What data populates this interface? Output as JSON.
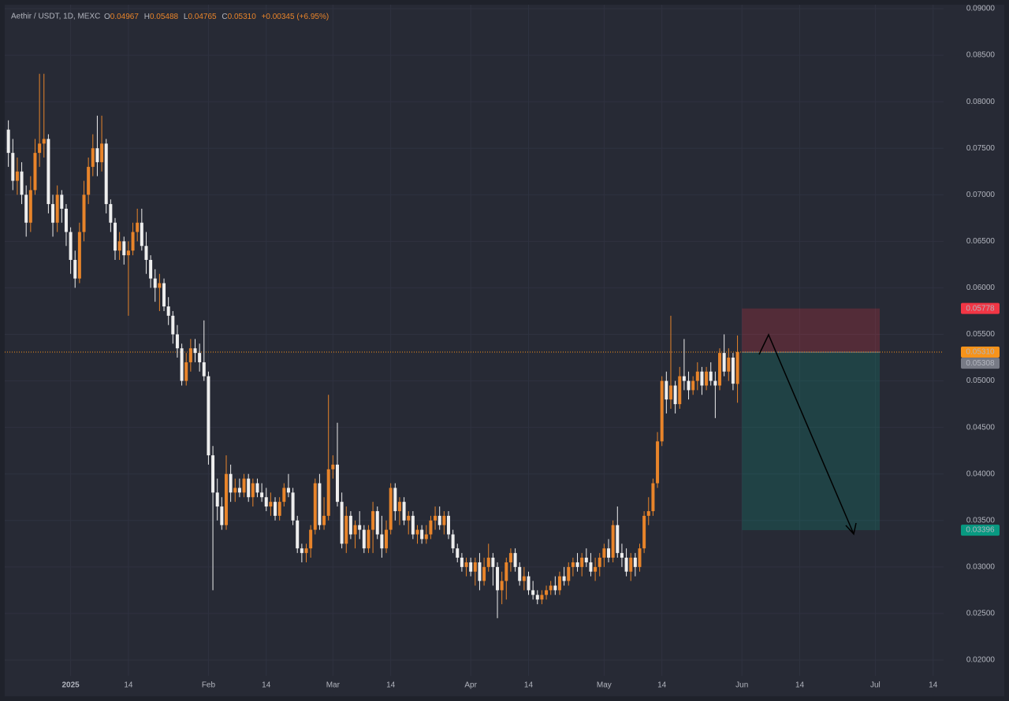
{
  "chart_data": {
    "type": "candlestick",
    "header": {
      "symbol": "Aethir / USDT, 1D, MEXC",
      "o": "O",
      "open": "0.04967",
      "h": "H",
      "high": "0.05488",
      "l": "L",
      "low": "0.04765",
      "c": "C",
      "close": "0.05310",
      "change": "+0.00345 (+6.95%)"
    },
    "up_color": "#e8842a",
    "down_color": "#eeeeee",
    "xlim": [
      "2024-12-17",
      "2025-07-16"
    ],
    "xticks": [
      {
        "value": "2025-01-01",
        "label": "2025"
      },
      {
        "value": "2025-01-14",
        "label": "14"
      },
      {
        "value": "2025-02-01",
        "label": "Feb"
      },
      {
        "value": "2025-02-14",
        "label": "14"
      },
      {
        "value": "2025-03-01",
        "label": "Mar"
      },
      {
        "value": "2025-03-14",
        "label": "14"
      },
      {
        "value": "2025-04-01",
        "label": "Apr"
      },
      {
        "value": "2025-04-14",
        "label": "14"
      },
      {
        "value": "2025-05-01",
        "label": "May"
      },
      {
        "value": "2025-05-14",
        "label": "14"
      },
      {
        "value": "2025-06-01",
        "label": "Jun"
      },
      {
        "value": "2025-06-14",
        "label": "14"
      },
      {
        "value": "2025-07-01",
        "label": "Jul"
      },
      {
        "value": "2025-07-14",
        "label": "14"
      }
    ],
    "ylim": [
      0.02,
      0.09
    ],
    "yticks": [
      {
        "value": 0.02,
        "label": "0.02000"
      },
      {
        "value": 0.025,
        "label": "0.02500"
      },
      {
        "value": 0.03,
        "label": "0.03000"
      },
      {
        "value": 0.035,
        "label": "0.03500"
      },
      {
        "value": 0.04,
        "label": "0.04000"
      },
      {
        "value": 0.045,
        "label": "0.04500"
      },
      {
        "value": 0.05,
        "label": "0.05000"
      },
      {
        "value": 0.055,
        "label": "0.05500"
      },
      {
        "value": 0.06,
        "label": "0.06000"
      },
      {
        "value": 0.065,
        "label": "0.06500"
      },
      {
        "value": 0.07,
        "label": "0.07000"
      },
      {
        "value": 0.075,
        "label": "0.07500"
      },
      {
        "value": 0.08,
        "label": "0.08000"
      },
      {
        "value": 0.085,
        "label": "0.08500"
      },
      {
        "value": 0.09,
        "label": "0.09000"
      }
    ],
    "grid": true,
    "last_price": {
      "value": 0.0531,
      "label": "0.05310",
      "color": "#f7931a"
    },
    "position": {
      "start": "2025-06-01",
      "end": "2025-07-02",
      "stop": 0.05778,
      "entry": 0.05308,
      "target": 0.03396,
      "stop_color": "#f23645",
      "entry_color": "#787b86",
      "target_color": "#089981"
    },
    "x": [
      "2024-12-18",
      "2024-12-19",
      "2024-12-20",
      "2024-12-21",
      "2024-12-22",
      "2024-12-23",
      "2024-12-24",
      "2024-12-25",
      "2024-12-26",
      "2024-12-27",
      "2024-12-28",
      "2024-12-29",
      "2024-12-30",
      "2024-12-31",
      "2025-01-01",
      "2025-01-02",
      "2025-01-03",
      "2025-01-04",
      "2025-01-05",
      "2025-01-06",
      "2025-01-07",
      "2025-01-08",
      "2025-01-09",
      "2025-01-10",
      "2025-01-11",
      "2025-01-12",
      "2025-01-13",
      "2025-01-14",
      "2025-01-15",
      "2025-01-16",
      "2025-01-17",
      "2025-01-18",
      "2025-01-19",
      "2025-01-20",
      "2025-01-21",
      "2025-01-22",
      "2025-01-23",
      "2025-01-24",
      "2025-01-25",
      "2025-01-26",
      "2025-01-27",
      "2025-01-28",
      "2025-01-29",
      "2025-01-30",
      "2025-01-31",
      "2025-02-01",
      "2025-02-02",
      "2025-02-03",
      "2025-02-04",
      "2025-02-05",
      "2025-02-06",
      "2025-02-07",
      "2025-02-08",
      "2025-02-09",
      "2025-02-10",
      "2025-02-11",
      "2025-02-12",
      "2025-02-13",
      "2025-02-14",
      "2025-02-15",
      "2025-02-16",
      "2025-02-17",
      "2025-02-18",
      "2025-02-19",
      "2025-02-20",
      "2025-02-21",
      "2025-02-22",
      "2025-02-23",
      "2025-02-24",
      "2025-02-25",
      "2025-02-26",
      "2025-02-27",
      "2025-02-28",
      "2025-03-01",
      "2025-03-02",
      "2025-03-03",
      "2025-03-04",
      "2025-03-05",
      "2025-03-06",
      "2025-03-07",
      "2025-03-08",
      "2025-03-09",
      "2025-03-10",
      "2025-03-11",
      "2025-03-12",
      "2025-03-13",
      "2025-03-14",
      "2025-03-15",
      "2025-03-16",
      "2025-03-17",
      "2025-03-18",
      "2025-03-19",
      "2025-03-20",
      "2025-03-21",
      "2025-03-22",
      "2025-03-23",
      "2025-03-24",
      "2025-03-25",
      "2025-03-26",
      "2025-03-27",
      "2025-03-28",
      "2025-03-29",
      "2025-03-30",
      "2025-03-31",
      "2025-04-01",
      "2025-04-02",
      "2025-04-03",
      "2025-04-04",
      "2025-04-05",
      "2025-04-06",
      "2025-04-07",
      "2025-04-08",
      "2025-04-09",
      "2025-04-10",
      "2025-04-11",
      "2025-04-12",
      "2025-04-13",
      "2025-04-14",
      "2025-04-15",
      "2025-04-16",
      "2025-04-17",
      "2025-04-18",
      "2025-04-19",
      "2025-04-20",
      "2025-04-21",
      "2025-04-22",
      "2025-04-23",
      "2025-04-24",
      "2025-04-25",
      "2025-04-26",
      "2025-04-27",
      "2025-04-28",
      "2025-04-29",
      "2025-04-30",
      "2025-05-01",
      "2025-05-02",
      "2025-05-03",
      "2025-05-04",
      "2025-05-05",
      "2025-05-06",
      "2025-05-07",
      "2025-05-08",
      "2025-05-09",
      "2025-05-10",
      "2025-05-11",
      "2025-05-12",
      "2025-05-13",
      "2025-05-14",
      "2025-05-15",
      "2025-05-16",
      "2025-05-17",
      "2025-05-18",
      "2025-05-19",
      "2025-05-20",
      "2025-05-21",
      "2025-05-22",
      "2025-05-23",
      "2025-05-24",
      "2025-05-25",
      "2025-05-26",
      "2025-05-27",
      "2025-05-28",
      "2025-05-29",
      "2025-05-30",
      "2025-05-31"
    ],
    "candles": [
      [
        0.077,
        0.078,
        0.073,
        0.0745
      ],
      [
        0.0745,
        0.076,
        0.0705,
        0.0715
      ],
      [
        0.0715,
        0.074,
        0.07,
        0.0725
      ],
      [
        0.0725,
        0.0735,
        0.069,
        0.07
      ],
      [
        0.07,
        0.071,
        0.0655,
        0.067
      ],
      [
        0.067,
        0.072,
        0.066,
        0.0705
      ],
      [
        0.0705,
        0.076,
        0.07,
        0.0745
      ],
      [
        0.0745,
        0.083,
        0.073,
        0.0755
      ],
      [
        0.0755,
        0.083,
        0.074,
        0.076
      ],
      [
        0.076,
        0.0765,
        0.068,
        0.069
      ],
      [
        0.069,
        0.07,
        0.0655,
        0.067
      ],
      [
        0.067,
        0.071,
        0.066,
        0.07
      ],
      [
        0.07,
        0.0705,
        0.067,
        0.0685
      ],
      [
        0.0685,
        0.069,
        0.0645,
        0.066
      ],
      [
        0.066,
        0.0665,
        0.0615,
        0.063
      ],
      [
        0.063,
        0.064,
        0.06,
        0.061
      ],
      [
        0.061,
        0.067,
        0.0605,
        0.066
      ],
      [
        0.066,
        0.0715,
        0.065,
        0.07
      ],
      [
        0.07,
        0.074,
        0.069,
        0.073
      ],
      [
        0.073,
        0.0765,
        0.072,
        0.075
      ],
      [
        0.075,
        0.0785,
        0.072,
        0.0735
      ],
      [
        0.0735,
        0.0785,
        0.0725,
        0.0755
      ],
      [
        0.0755,
        0.076,
        0.068,
        0.069
      ],
      [
        0.069,
        0.0695,
        0.066,
        0.067
      ],
      [
        0.067,
        0.0675,
        0.063,
        0.064
      ],
      [
        0.064,
        0.066,
        0.063,
        0.065
      ],
      [
        0.065,
        0.0655,
        0.0625,
        0.0635
      ],
      [
        0.0635,
        0.065,
        0.057,
        0.064
      ],
      [
        0.064,
        0.067,
        0.0635,
        0.066
      ],
      [
        0.066,
        0.0685,
        0.065,
        0.067
      ],
      [
        0.067,
        0.0685,
        0.064,
        0.0645
      ],
      [
        0.0645,
        0.066,
        0.0615,
        0.063
      ],
      [
        0.063,
        0.0635,
        0.06,
        0.061
      ],
      [
        0.061,
        0.062,
        0.0585,
        0.06
      ],
      [
        0.06,
        0.0615,
        0.0575,
        0.0605
      ],
      [
        0.0605,
        0.061,
        0.0575,
        0.058
      ],
      [
        0.058,
        0.059,
        0.056,
        0.057
      ],
      [
        0.057,
        0.0575,
        0.054,
        0.055
      ],
      [
        0.055,
        0.056,
        0.0525,
        0.0535
      ],
      [
        0.0535,
        0.054,
        0.0495,
        0.05
      ],
      [
        0.05,
        0.053,
        0.0495,
        0.052
      ],
      [
        0.052,
        0.0545,
        0.051,
        0.0535
      ],
      [
        0.0535,
        0.0545,
        0.052,
        0.053
      ],
      [
        0.053,
        0.054,
        0.051,
        0.052
      ],
      [
        0.052,
        0.0565,
        0.05,
        0.0505
      ],
      [
        0.0505,
        0.051,
        0.041,
        0.042
      ],
      [
        0.042,
        0.043,
        0.0275,
        0.038
      ],
      [
        0.038,
        0.0395,
        0.035,
        0.0365
      ],
      [
        0.0365,
        0.0375,
        0.034,
        0.0345
      ],
      [
        0.0345,
        0.042,
        0.034,
        0.04
      ],
      [
        0.04,
        0.041,
        0.037,
        0.038
      ],
      [
        0.038,
        0.0395,
        0.037,
        0.0385
      ],
      [
        0.0385,
        0.0395,
        0.0375,
        0.038
      ],
      [
        0.038,
        0.04,
        0.0375,
        0.0395
      ],
      [
        0.0395,
        0.04,
        0.037,
        0.0375
      ],
      [
        0.0375,
        0.0395,
        0.0365,
        0.039
      ],
      [
        0.039,
        0.0395,
        0.0375,
        0.038
      ],
      [
        0.038,
        0.039,
        0.037,
        0.0375
      ],
      [
        0.0375,
        0.0385,
        0.036,
        0.0365
      ],
      [
        0.0365,
        0.038,
        0.0355,
        0.037
      ],
      [
        0.037,
        0.0375,
        0.035,
        0.0355
      ],
      [
        0.0355,
        0.0375,
        0.035,
        0.037
      ],
      [
        0.037,
        0.039,
        0.0365,
        0.0385
      ],
      [
        0.0385,
        0.04,
        0.0375,
        0.038
      ],
      [
        0.038,
        0.0385,
        0.0345,
        0.035
      ],
      [
        0.035,
        0.0355,
        0.0315,
        0.032
      ],
      [
        0.032,
        0.0325,
        0.0305,
        0.0315
      ],
      [
        0.0315,
        0.0325,
        0.0305,
        0.032
      ],
      [
        0.032,
        0.0345,
        0.031,
        0.034
      ],
      [
        0.034,
        0.0395,
        0.0335,
        0.039
      ],
      [
        0.039,
        0.04,
        0.034,
        0.0345
      ],
      [
        0.0345,
        0.0375,
        0.034,
        0.0355
      ],
      [
        0.0355,
        0.0485,
        0.035,
        0.0405
      ],
      [
        0.0405,
        0.042,
        0.0395,
        0.041
      ],
      [
        0.041,
        0.0455,
        0.0365,
        0.037
      ],
      [
        0.037,
        0.038,
        0.032,
        0.0325
      ],
      [
        0.0325,
        0.0365,
        0.0315,
        0.0355
      ],
      [
        0.0355,
        0.036,
        0.033,
        0.0335
      ],
      [
        0.0335,
        0.035,
        0.032,
        0.0345
      ],
      [
        0.0345,
        0.036,
        0.033,
        0.034
      ],
      [
        0.034,
        0.0345,
        0.0315,
        0.032
      ],
      [
        0.032,
        0.0345,
        0.0315,
        0.034
      ],
      [
        0.034,
        0.037,
        0.0315,
        0.036
      ],
      [
        0.036,
        0.0365,
        0.033,
        0.0335
      ],
      [
        0.0335,
        0.0355,
        0.031,
        0.032
      ],
      [
        0.032,
        0.035,
        0.0315,
        0.034
      ],
      [
        0.034,
        0.039,
        0.0335,
        0.0385
      ],
      [
        0.0385,
        0.039,
        0.035,
        0.036
      ],
      [
        0.036,
        0.0375,
        0.0345,
        0.037
      ],
      [
        0.037,
        0.0375,
        0.0345,
        0.035
      ],
      [
        0.035,
        0.036,
        0.0335,
        0.0355
      ],
      [
        0.0355,
        0.036,
        0.033,
        0.0335
      ],
      [
        0.0335,
        0.0345,
        0.0325,
        0.034
      ],
      [
        0.034,
        0.0345,
        0.0325,
        0.033
      ],
      [
        0.033,
        0.0345,
        0.0325,
        0.0335
      ],
      [
        0.0335,
        0.0355,
        0.033,
        0.035
      ],
      [
        0.035,
        0.0365,
        0.034,
        0.0355
      ],
      [
        0.0355,
        0.0365,
        0.034,
        0.0345
      ],
      [
        0.0345,
        0.036,
        0.0335,
        0.0355
      ],
      [
        0.0355,
        0.036,
        0.033,
        0.0335
      ],
      [
        0.0335,
        0.034,
        0.0315,
        0.032
      ],
      [
        0.032,
        0.0325,
        0.0305,
        0.031
      ],
      [
        0.031,
        0.0315,
        0.0295,
        0.03
      ],
      [
        0.03,
        0.031,
        0.029,
        0.0305
      ],
      [
        0.0305,
        0.031,
        0.029,
        0.0295
      ],
      [
        0.0295,
        0.031,
        0.028,
        0.0305
      ],
      [
        0.0305,
        0.0315,
        0.0275,
        0.0285
      ],
      [
        0.0285,
        0.031,
        0.028,
        0.03
      ],
      [
        0.03,
        0.0325,
        0.0295,
        0.031
      ],
      [
        0.031,
        0.0315,
        0.028,
        0.03
      ],
      [
        0.03,
        0.0305,
        0.0245,
        0.0275
      ],
      [
        0.0275,
        0.0295,
        0.026,
        0.0285
      ],
      [
        0.0285,
        0.031,
        0.0265,
        0.0305
      ],
      [
        0.0305,
        0.032,
        0.0295,
        0.0315
      ],
      [
        0.0315,
        0.032,
        0.0295,
        0.03
      ],
      [
        0.03,
        0.0305,
        0.028,
        0.0285
      ],
      [
        0.0285,
        0.03,
        0.0275,
        0.029
      ],
      [
        0.029,
        0.0295,
        0.027,
        0.0275
      ],
      [
        0.0275,
        0.0285,
        0.0265,
        0.027
      ],
      [
        0.027,
        0.0275,
        0.026,
        0.0265
      ],
      [
        0.0265,
        0.0275,
        0.026,
        0.027
      ],
      [
        0.027,
        0.028,
        0.0265,
        0.0275
      ],
      [
        0.0275,
        0.0285,
        0.027,
        0.028
      ],
      [
        0.028,
        0.029,
        0.027,
        0.0275
      ],
      [
        0.0275,
        0.0295,
        0.027,
        0.029
      ],
      [
        0.029,
        0.03,
        0.028,
        0.0285
      ],
      [
        0.0285,
        0.0305,
        0.028,
        0.03
      ],
      [
        0.03,
        0.031,
        0.029,
        0.0305
      ],
      [
        0.0305,
        0.0315,
        0.0295,
        0.03
      ],
      [
        0.03,
        0.0315,
        0.029,
        0.031
      ],
      [
        0.031,
        0.032,
        0.03,
        0.0305
      ],
      [
        0.0305,
        0.0315,
        0.029,
        0.0295
      ],
      [
        0.0295,
        0.031,
        0.0285,
        0.03
      ],
      [
        0.03,
        0.0315,
        0.029,
        0.031
      ],
      [
        0.031,
        0.0325,
        0.03,
        0.032
      ],
      [
        0.032,
        0.033,
        0.0305,
        0.031
      ],
      [
        0.031,
        0.035,
        0.0305,
        0.0345
      ],
      [
        0.0345,
        0.0365,
        0.031,
        0.0315
      ],
      [
        0.0315,
        0.0325,
        0.03,
        0.031
      ],
      [
        0.031,
        0.032,
        0.029,
        0.0295
      ],
      [
        0.0295,
        0.0315,
        0.0285,
        0.031
      ],
      [
        0.031,
        0.0315,
        0.029,
        0.03
      ],
      [
        0.03,
        0.0325,
        0.0295,
        0.032
      ],
      [
        0.032,
        0.036,
        0.0315,
        0.0355
      ],
      [
        0.0355,
        0.0375,
        0.0345,
        0.036
      ],
      [
        0.036,
        0.0395,
        0.0355,
        0.039
      ],
      [
        0.039,
        0.0445,
        0.0385,
        0.0435
      ],
      [
        0.0435,
        0.0505,
        0.043,
        0.05
      ],
      [
        0.05,
        0.051,
        0.0465,
        0.048
      ],
      [
        0.048,
        0.057,
        0.047,
        0.0495
      ],
      [
        0.0495,
        0.05,
        0.0465,
        0.0475
      ],
      [
        0.0475,
        0.0515,
        0.047,
        0.0505
      ],
      [
        0.0505,
        0.0545,
        0.049,
        0.05
      ],
      [
        0.05,
        0.051,
        0.048,
        0.049
      ],
      [
        0.049,
        0.0505,
        0.0485,
        0.05
      ],
      [
        0.05,
        0.052,
        0.049,
        0.051
      ],
      [
        0.051,
        0.0515,
        0.0485,
        0.0495
      ],
      [
        0.0495,
        0.0515,
        0.049,
        0.051
      ],
      [
        0.051,
        0.052,
        0.0495,
        0.05
      ],
      [
        0.05,
        0.051,
        0.046,
        0.0495
      ],
      [
        0.0495,
        0.0535,
        0.049,
        0.053
      ],
      [
        0.053,
        0.055,
        0.0505,
        0.051
      ],
      [
        0.051,
        0.0535,
        0.05,
        0.0525
      ],
      [
        0.0525,
        0.053,
        0.049,
        0.0497
      ],
      [
        0.04967,
        0.05488,
        0.04765,
        0.0531
      ]
    ]
  }
}
